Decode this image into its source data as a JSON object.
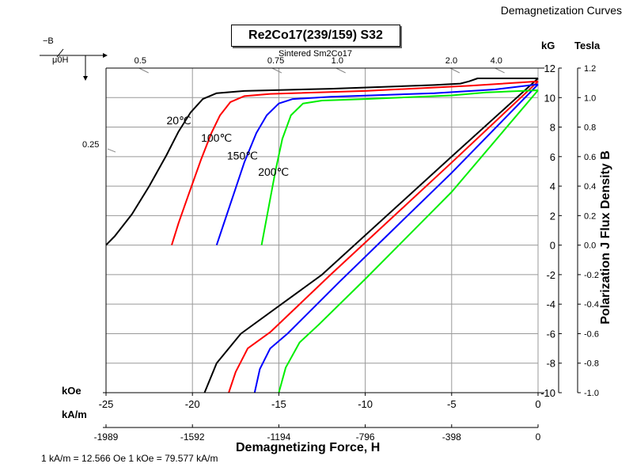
{
  "header": {
    "corner_title": "Demagnetization Curves",
    "grade": "Re2Co17(239/159) S32",
    "material": "Sintered Sm2Co17",
    "conversion_note": "1 kA/m = 12.566 Oe 1 kOe = 79.577 kA/m"
  },
  "axes": {
    "x_title": "Demagnetizing Force, H",
    "y_title": "Polarization J Flux Density B",
    "unit_kOe": "kOe",
    "unit_kAm": "kA/m",
    "unit_kG": "kG",
    "unit_tesla": "Tesla",
    "symbol_B": "−B",
    "symbol_H": "μ0H"
  },
  "chart_data": {
    "type": "line",
    "title": "Demagnetization Curves",
    "xlabel": "Demagnetizing Force, H",
    "ylabel": "Polarization J Flux Density B",
    "xlim": [
      -25,
      0
    ],
    "ylim": [
      -10,
      12
    ],
    "grid": true,
    "x_ticks": [
      -25,
      -20,
      -15,
      -10,
      -5,
      0
    ],
    "x_tick_labels": [
      "-25",
      "-20",
      "-15",
      "-10",
      "-5",
      "0"
    ],
    "x2_tick_labels": [
      "-1989",
      "-1592",
      "-1194",
      "-796",
      "-398",
      "0"
    ],
    "y_ticks": [
      12,
      10,
      8,
      6,
      4,
      2,
      0,
      -2,
      -4,
      -6,
      -8,
      -10
    ],
    "y_tick_labels": [
      "12",
      "10",
      "8",
      "6",
      "4",
      "2",
      "0",
      "-2",
      "-4",
      "-6",
      "-8",
      "-10"
    ],
    "y2_tick_labels": [
      "1.2",
      "1.0",
      "0.8",
      "0.6",
      "0.4",
      "0.2",
      "0.0",
      "-0.2",
      "-0.4",
      "-0.6",
      "-0.8",
      "-1.0"
    ],
    "permeance_lines": [
      {
        "label": "0.5",
        "x": -23.0,
        "y": 12.0
      },
      {
        "label": "0.75",
        "x": -15.3,
        "y": 12.0
      },
      {
        "label": "1.0",
        "x": -11.6,
        "y": 12.0
      },
      {
        "label": "2.0",
        "x": -5.0,
        "y": 12.0
      },
      {
        "label": "4.0",
        "x": -2.4,
        "y": 12.0
      },
      {
        "label": "0.25",
        "x": -25.0,
        "y": 6.2
      }
    ],
    "series": [
      {
        "name": "20℃",
        "color": "#000000",
        "label_pos": {
          "x": -21.5,
          "y": 8.2
        },
        "J": [
          [
            -25,
            0
          ],
          [
            -24.5,
            0.6
          ],
          [
            -23.5,
            2.1
          ],
          [
            -22.5,
            4.0
          ],
          [
            -21.5,
            6.1
          ],
          [
            -20.8,
            7.7
          ],
          [
            -20.1,
            9.0
          ],
          [
            -19.4,
            9.9
          ],
          [
            -18.6,
            10.3
          ],
          [
            -17.0,
            10.45
          ],
          [
            -12.0,
            10.6
          ],
          [
            -6.0,
            10.85
          ],
          [
            -4.5,
            10.95
          ],
          [
            -4.0,
            11.1
          ],
          [
            -3.5,
            11.3
          ],
          [
            0,
            11.3
          ]
        ],
        "B": [
          [
            -19.3,
            -10
          ],
          [
            -18.6,
            -8
          ],
          [
            -17.2,
            -6
          ],
          [
            -12.5,
            -2
          ],
          [
            -5.0,
            6.0
          ],
          [
            0,
            11.3
          ]
        ]
      },
      {
        "name": "100℃",
        "color": "#ff0000",
        "label_pos": {
          "x": -19.5,
          "y": 7.0
        },
        "J": [
          [
            -21.2,
            0
          ],
          [
            -20.8,
            1.5
          ],
          [
            -20.2,
            3.5
          ],
          [
            -19.5,
            5.8
          ],
          [
            -18.9,
            7.6
          ],
          [
            -18.4,
            8.8
          ],
          [
            -17.8,
            9.7
          ],
          [
            -17.0,
            10.1
          ],
          [
            -15.5,
            10.25
          ],
          [
            -10.0,
            10.45
          ],
          [
            -4.0,
            10.8
          ],
          [
            0,
            11.1
          ]
        ],
        "B": [
          [
            -17.9,
            -10
          ],
          [
            -17.5,
            -8.6
          ],
          [
            -16.8,
            -7.0
          ],
          [
            -15.5,
            -5.9
          ],
          [
            -12.0,
            -2.0
          ],
          [
            -5.0,
            5.6
          ],
          [
            0,
            11.1
          ]
        ]
      },
      {
        "name": "150℃",
        "color": "#0000ff",
        "label_pos": {
          "x": -18.0,
          "y": 5.8
        },
        "J": [
          [
            -18.6,
            0
          ],
          [
            -18.2,
            1.4
          ],
          [
            -17.6,
            3.5
          ],
          [
            -17.0,
            5.6
          ],
          [
            -16.3,
            7.6
          ],
          [
            -15.7,
            8.8
          ],
          [
            -15.0,
            9.6
          ],
          [
            -14.2,
            9.9
          ],
          [
            -12.0,
            10.05
          ],
          [
            -6.0,
            10.3
          ],
          [
            -2.5,
            10.55
          ],
          [
            0,
            10.9
          ]
        ],
        "B": [
          [
            -16.4,
            -10
          ],
          [
            -16.1,
            -8.4
          ],
          [
            -15.5,
            -7.0
          ],
          [
            -14.5,
            -6.0
          ],
          [
            -11.5,
            -2.5
          ],
          [
            -5.0,
            4.9
          ],
          [
            0,
            10.9
          ]
        ]
      },
      {
        "name": "200℃",
        "color": "#00ee00",
        "label_pos": {
          "x": -16.2,
          "y": 4.7
        },
        "J": [
          [
            -16.0,
            0
          ],
          [
            -15.6,
            2.5
          ],
          [
            -15.2,
            5.0
          ],
          [
            -14.8,
            7.2
          ],
          [
            -14.3,
            8.8
          ],
          [
            -13.6,
            9.6
          ],
          [
            -12.5,
            9.8
          ],
          [
            -10.0,
            9.9
          ],
          [
            -5.0,
            10.15
          ],
          [
            -3.0,
            10.35
          ],
          [
            0,
            10.5
          ]
        ],
        "B": [
          [
            -15.0,
            -10
          ],
          [
            -14.6,
            -8.3
          ],
          [
            -13.8,
            -6.6
          ],
          [
            -12.7,
            -5.4
          ],
          [
            -10.0,
            -2.3
          ],
          [
            -5.0,
            3.6
          ],
          [
            0,
            10.5
          ]
        ]
      }
    ]
  }
}
